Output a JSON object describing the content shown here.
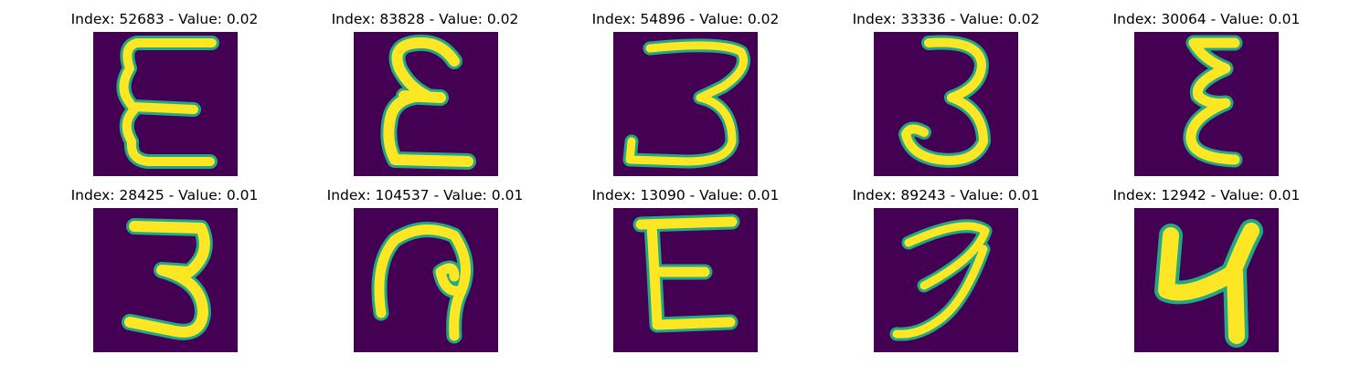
{
  "colors": {
    "background": "#440154",
    "stroke_core": "#fde725",
    "stroke_edge": "#22a884"
  },
  "panels": [
    {
      "title": "Index: 52683 - Value: 0.02",
      "digit": "E"
    },
    {
      "title": "Index: 83828 - Value: 0.02",
      "digit": "epsilon"
    },
    {
      "title": "Index: 54896 - Value: 0.02",
      "digit": "3-flat-bottom"
    },
    {
      "title": "Index: 33336 - Value: 0.02",
      "digit": "3"
    },
    {
      "title": "Index: 30064 - Value: 0.01",
      "digit": "epsilon-narrow"
    },
    {
      "title": "Index: 28425 - Value: 0.01",
      "digit": "3-flat-top"
    },
    {
      "title": "Index: 104537 - Value: 0.01",
      "digit": "loop"
    },
    {
      "title": "Index: 13090 - Value: 0.01",
      "digit": "E-block"
    },
    {
      "title": "Index: 89243 - Value: 0.01",
      "digit": "3-slanted"
    },
    {
      "title": "Index: 12942 - Value: 0.01",
      "digit": "N-shape"
    }
  ]
}
